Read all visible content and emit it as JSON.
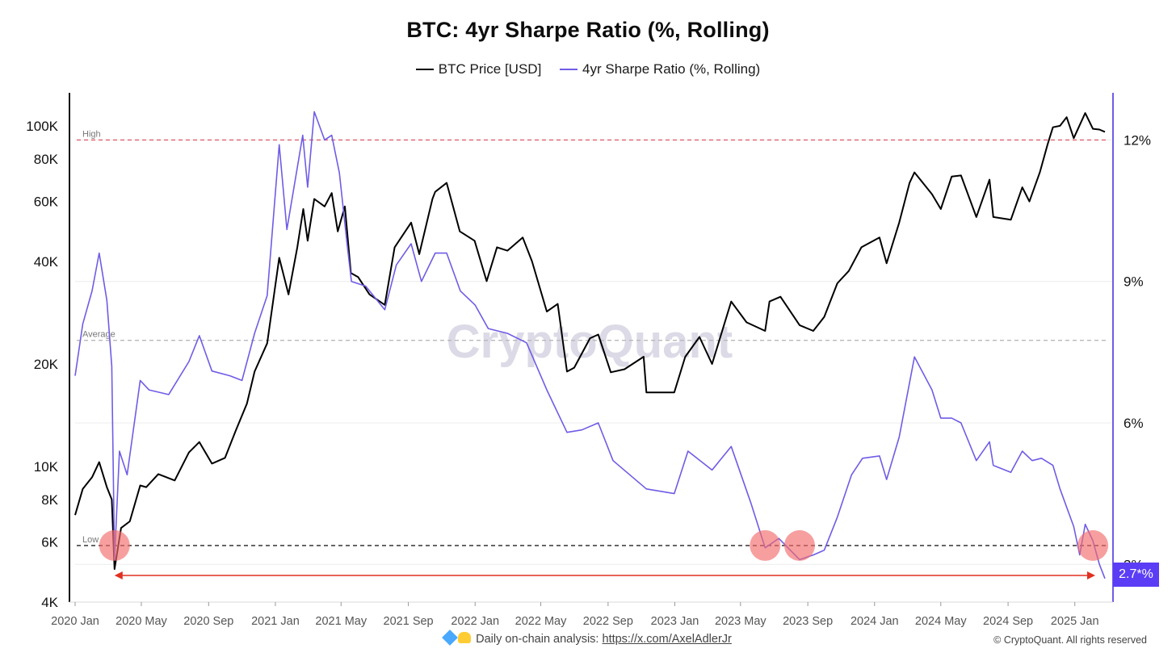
{
  "title": "BTC: 4yr Sharpe Ratio (%, Rolling)",
  "legend": [
    {
      "label": "BTC Price [USD]",
      "color": "#000000"
    },
    {
      "label": "4yr Sharpe Ratio (%, Rolling)",
      "color": "#6f5ce6"
    }
  ],
  "footer": {
    "text": "Daily on-chain analysis: ",
    "link": "https://x.com/AxelAdlerJr",
    "icons": [
      "gem-icon",
      "raised-hands-icon"
    ]
  },
  "copyright": "© CryptoQuant. All rights reserved",
  "watermark": "CryptoQuant",
  "current_value_badge": "2.7*%",
  "chart_data": {
    "type": "line",
    "x_ticks": [
      "2020 Jan",
      "2020 May",
      "2020 Sep",
      "2021 Jan",
      "2021 May",
      "2021 Sep",
      "2022 Jan",
      "2022 May",
      "2022 Sep",
      "2023 Jan",
      "2023 May",
      "2023 Sep",
      "2024 Jan",
      "2024 May",
      "2024 Sep",
      "2025 Jan"
    ],
    "x_range": [
      "2020-01-01",
      "2025-02-25"
    ],
    "y_left": {
      "scale": "log",
      "range": [
        4000,
        125000
      ],
      "ticks": [
        "4K",
        "6K",
        "8K",
        "10K",
        "20K",
        "40K",
        "60K",
        "80K",
        "100K"
      ],
      "tick_values": [
        4000,
        6000,
        8000,
        10000,
        20000,
        40000,
        60000,
        80000,
        100000
      ]
    },
    "y_right": {
      "scale": "linear",
      "range": [
        2.2,
        13.0
      ],
      "ticks": [
        "3%",
        "6%",
        "9%",
        "12%"
      ],
      "tick_values": [
        3,
        6,
        9,
        12
      ]
    },
    "reference_lines": [
      {
        "label": "High",
        "value": 12.0,
        "color": "#e06070",
        "style": "dashed"
      },
      {
        "label": "Average",
        "value": 7.75,
        "color": "#b8b8b8",
        "style": "dashed"
      },
      {
        "label": "Low",
        "value": 3.4,
        "color": "#222222",
        "style": "dashed"
      }
    ],
    "series": [
      {
        "name": "BTC Price [USD]",
        "axis": "left",
        "color": "#000000",
        "points": [
          [
            "2020-01-01",
            7200
          ],
          [
            "2020-01-15",
            8600
          ],
          [
            "2020-02-01",
            9300
          ],
          [
            "2020-02-14",
            10300
          ],
          [
            "2020-02-28",
            8700
          ],
          [
            "2020-03-08",
            8000
          ],
          [
            "2020-03-13",
            5000
          ],
          [
            "2020-03-25",
            6600
          ],
          [
            "2020-04-10",
            6900
          ],
          [
            "2020-04-29",
            8800
          ],
          [
            "2020-05-10",
            8700
          ],
          [
            "2020-06-01",
            9500
          ],
          [
            "2020-07-01",
            9100
          ],
          [
            "2020-07-27",
            11000
          ],
          [
            "2020-08-15",
            11800
          ],
          [
            "2020-09-07",
            10200
          ],
          [
            "2020-10-01",
            10600
          ],
          [
            "2020-10-21",
            12800
          ],
          [
            "2020-11-10",
            15300
          ],
          [
            "2020-11-24",
            19000
          ],
          [
            "2020-12-17",
            23000
          ],
          [
            "2021-01-08",
            41000
          ],
          [
            "2021-01-25",
            32000
          ],
          [
            "2021-02-10",
            44000
          ],
          [
            "2021-02-21",
            57000
          ],
          [
            "2021-03-01",
            46000
          ],
          [
            "2021-03-13",
            61000
          ],
          [
            "2021-04-01",
            58000
          ],
          [
            "2021-04-14",
            63500
          ],
          [
            "2021-04-25",
            49000
          ],
          [
            "2021-05-08",
            58000
          ],
          [
            "2021-05-19",
            37000
          ],
          [
            "2021-06-01",
            36000
          ],
          [
            "2021-06-22",
            32000
          ],
          [
            "2021-07-20",
            29800
          ],
          [
            "2021-08-07",
            44000
          ],
          [
            "2021-09-06",
            52000
          ],
          [
            "2021-09-21",
            42000
          ],
          [
            "2021-10-15",
            61000
          ],
          [
            "2021-10-20",
            64000
          ],
          [
            "2021-11-10",
            68000
          ],
          [
            "2021-12-04",
            49000
          ],
          [
            "2021-12-31",
            46000
          ],
          [
            "2022-01-22",
            35000
          ],
          [
            "2022-02-10",
            44000
          ],
          [
            "2022-03-01",
            43000
          ],
          [
            "2022-03-29",
            47000
          ],
          [
            "2022-04-15",
            40000
          ],
          [
            "2022-05-12",
            28500
          ],
          [
            "2022-06-01",
            30000
          ],
          [
            "2022-06-18",
            19000
          ],
          [
            "2022-07-01",
            19500
          ],
          [
            "2022-07-30",
            23800
          ],
          [
            "2022-08-14",
            24400
          ],
          [
            "2022-09-06",
            18900
          ],
          [
            "2022-10-01",
            19300
          ],
          [
            "2022-11-05",
            21000
          ],
          [
            "2022-11-10",
            16500
          ],
          [
            "2022-12-31",
            16500
          ],
          [
            "2023-01-20",
            21000
          ],
          [
            "2023-02-15",
            24000
          ],
          [
            "2023-03-10",
            20000
          ],
          [
            "2023-04-14",
            30500
          ],
          [
            "2023-05-12",
            26500
          ],
          [
            "2023-06-15",
            25000
          ],
          [
            "2023-06-23",
            30500
          ],
          [
            "2023-07-13",
            31500
          ],
          [
            "2023-08-17",
            26000
          ],
          [
            "2023-09-11",
            25000
          ],
          [
            "2023-10-01",
            27500
          ],
          [
            "2023-10-25",
            34500
          ],
          [
            "2023-11-15",
            37500
          ],
          [
            "2023-12-08",
            44000
          ],
          [
            "2024-01-10",
            47000
          ],
          [
            "2024-01-23",
            39500
          ],
          [
            "2024-02-15",
            52000
          ],
          [
            "2024-03-05",
            68000
          ],
          [
            "2024-03-14",
            73000
          ],
          [
            "2024-04-15",
            63000
          ],
          [
            "2024-05-01",
            57000
          ],
          [
            "2024-05-21",
            71000
          ],
          [
            "2024-06-07",
            71500
          ],
          [
            "2024-07-05",
            54000
          ],
          [
            "2024-07-29",
            69500
          ],
          [
            "2024-08-05",
            54000
          ],
          [
            "2024-09-06",
            53000
          ],
          [
            "2024-09-27",
            66000
          ],
          [
            "2024-10-10",
            60000
          ],
          [
            "2024-10-29",
            73000
          ],
          [
            "2024-11-12",
            88000
          ],
          [
            "2024-11-22",
            99000
          ],
          [
            "2024-12-05",
            100000
          ],
          [
            "2024-12-17",
            106000
          ],
          [
            "2024-12-30",
            92000
          ],
          [
            "2025-01-20",
            109000
          ],
          [
            "2025-02-03",
            98000
          ],
          [
            "2025-02-15",
            97500
          ],
          [
            "2025-02-25",
            96000
          ]
        ]
      },
      {
        "name": "4yr Sharpe Ratio (%, Rolling)",
        "axis": "right",
        "color": "#6f5ce6",
        "points": [
          [
            "2020-01-01",
            7.0
          ],
          [
            "2020-01-15",
            8.1
          ],
          [
            "2020-02-01",
            8.8
          ],
          [
            "2020-02-14",
            9.6
          ],
          [
            "2020-02-28",
            8.6
          ],
          [
            "2020-03-08",
            7.2
          ],
          [
            "2020-03-13",
            3.1
          ],
          [
            "2020-03-22",
            5.4
          ],
          [
            "2020-04-05",
            4.9
          ],
          [
            "2020-04-29",
            6.9
          ],
          [
            "2020-05-15",
            6.7
          ],
          [
            "2020-06-20",
            6.6
          ],
          [
            "2020-07-27",
            7.3
          ],
          [
            "2020-08-15",
            7.85
          ],
          [
            "2020-09-07",
            7.1
          ],
          [
            "2020-10-10",
            7.0
          ],
          [
            "2020-11-01",
            6.9
          ],
          [
            "2020-11-24",
            7.9
          ],
          [
            "2020-12-17",
            8.7
          ],
          [
            "2021-01-08",
            11.9
          ],
          [
            "2021-01-22",
            10.1
          ],
          [
            "2021-02-20",
            12.1
          ],
          [
            "2021-03-01",
            11.0
          ],
          [
            "2021-03-13",
            12.6
          ],
          [
            "2021-04-01",
            12.0
          ],
          [
            "2021-04-14",
            12.1
          ],
          [
            "2021-04-28",
            11.3
          ],
          [
            "2021-05-12",
            9.8
          ],
          [
            "2021-05-20",
            9.0
          ],
          [
            "2021-06-15",
            8.9
          ],
          [
            "2021-07-20",
            8.4
          ],
          [
            "2021-08-10",
            9.35
          ],
          [
            "2021-09-06",
            9.8
          ],
          [
            "2021-09-25",
            9.0
          ],
          [
            "2021-10-20",
            9.6
          ],
          [
            "2021-11-10",
            9.6
          ],
          [
            "2021-12-05",
            8.8
          ],
          [
            "2022-01-01",
            8.5
          ],
          [
            "2022-01-25",
            8.0
          ],
          [
            "2022-03-01",
            7.9
          ],
          [
            "2022-04-05",
            7.7
          ],
          [
            "2022-05-12",
            6.7
          ],
          [
            "2022-06-18",
            5.8
          ],
          [
            "2022-07-15",
            5.85
          ],
          [
            "2022-08-14",
            6.0
          ],
          [
            "2022-09-10",
            5.2
          ],
          [
            "2022-11-10",
            4.6
          ],
          [
            "2022-12-31",
            4.5
          ],
          [
            "2023-01-25",
            5.4
          ],
          [
            "2023-03-10",
            5.0
          ],
          [
            "2023-04-14",
            5.5
          ],
          [
            "2023-05-20",
            4.3
          ],
          [
            "2023-06-15",
            3.35
          ],
          [
            "2023-07-10",
            3.55
          ],
          [
            "2023-08-17",
            3.1
          ],
          [
            "2023-09-11",
            3.2
          ],
          [
            "2023-10-01",
            3.3
          ],
          [
            "2023-10-25",
            4.0
          ],
          [
            "2023-11-20",
            4.9
          ],
          [
            "2023-12-10",
            5.25
          ],
          [
            "2024-01-10",
            5.3
          ],
          [
            "2024-01-23",
            4.8
          ],
          [
            "2024-02-15",
            5.7
          ],
          [
            "2024-03-14",
            7.4
          ],
          [
            "2024-04-15",
            6.7
          ],
          [
            "2024-05-01",
            6.1
          ],
          [
            "2024-05-21",
            6.1
          ],
          [
            "2024-06-07",
            6.0
          ],
          [
            "2024-07-05",
            5.2
          ],
          [
            "2024-07-29",
            5.6
          ],
          [
            "2024-08-05",
            5.1
          ],
          [
            "2024-09-06",
            4.95
          ],
          [
            "2024-09-27",
            5.4
          ],
          [
            "2024-10-15",
            5.2
          ],
          [
            "2024-11-01",
            5.25
          ],
          [
            "2024-11-22",
            5.1
          ],
          [
            "2024-12-05",
            4.6
          ],
          [
            "2024-12-30",
            3.8
          ],
          [
            "2025-01-10",
            3.2
          ],
          [
            "2025-01-20",
            3.85
          ],
          [
            "2025-02-03",
            3.5
          ],
          [
            "2025-02-15",
            3.0
          ],
          [
            "2025-02-25",
            2.7
          ]
        ]
      }
    ],
    "highlighted_lows": [
      "2020-03-13",
      "2023-06-15",
      "2023-08-17",
      "2025-02-03"
    ],
    "arrow": {
      "from": "2020-03-13",
      "to": "2025-02-25",
      "color": "#e03020"
    },
    "grid": true,
    "legend_position": "top"
  }
}
